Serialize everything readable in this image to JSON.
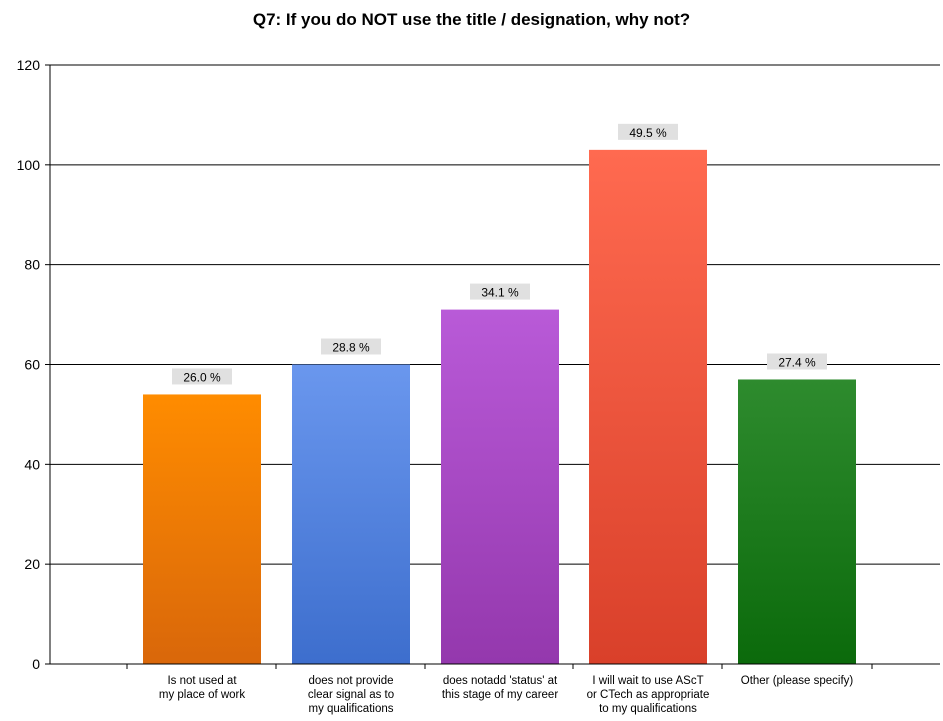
{
  "chart_data": {
    "type": "bar",
    "title": "Q7: If you do NOT use the title / designation, why not?",
    "xlabel": "",
    "ylabel": "",
    "ylim": [
      0,
      120
    ],
    "yticks": [
      0,
      20,
      40,
      60,
      80,
      100,
      120
    ],
    "grid": true,
    "categories": [
      [
        "Is not used at",
        "my place of work"
      ],
      [
        "does not provide",
        "clear signal as to",
        "my qualifications"
      ],
      [
        "does notadd 'status' at",
        "this stage of my career"
      ],
      [
        "I will wait to use AScT",
        "or CTech as appropriate",
        "to my qualifications"
      ],
      [
        "Other (please specify)"
      ]
    ],
    "values": [
      54,
      60,
      71,
      103,
      57
    ],
    "data_labels": [
      "26.0 %",
      "28.8 %",
      "34.1 %",
      "49.5 %",
      "27.4 %"
    ],
    "colors": [
      [
        "#ff8c00",
        "#d9670a"
      ],
      [
        "#6a97ee",
        "#3d6ecd"
      ],
      [
        "#b95ad8",
        "#9438ad"
      ],
      [
        "#ff6a50",
        "#d9402a"
      ],
      [
        "#2e8b2e",
        "#0b6a0b"
      ]
    ]
  }
}
